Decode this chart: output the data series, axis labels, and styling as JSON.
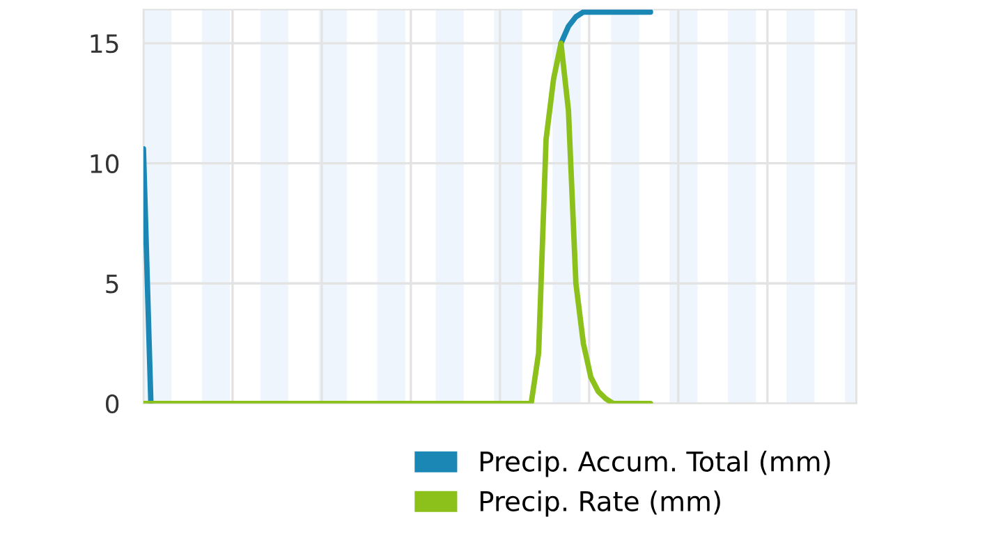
{
  "chart_data": {
    "type": "line",
    "categories": [
      null,
      null,
      null,
      null,
      null,
      null,
      null,
      null,
      null,
      null,
      null,
      null,
      null,
      null,
      null,
      null,
      null,
      null,
      null,
      null,
      null,
      null,
      null,
      null,
      null,
      null,
      null,
      null,
      null,
      null,
      null,
      null,
      null,
      null,
      null,
      null,
      null,
      null,
      null,
      null,
      null,
      null,
      null,
      null,
      null,
      null,
      null,
      null,
      null,
      null,
      null,
      null,
      null,
      null,
      null,
      null,
      null,
      null,
      null,
      null,
      null,
      null,
      null,
      null,
      null,
      null,
      null,
      null,
      null
    ],
    "series": [
      {
        "name": "Precip. Accum. Total (mm)",
        "color": "#1a87b5",
        "values": [
          10.6,
          0,
          null,
          null,
          null,
          null,
          null,
          null,
          null,
          null,
          null,
          null,
          null,
          null,
          null,
          null,
          null,
          null,
          null,
          null,
          null,
          null,
          null,
          null,
          null,
          null,
          null,
          null,
          null,
          null,
          null,
          null,
          null,
          null,
          null,
          null,
          null,
          null,
          null,
          null,
          null,
          null,
          null,
          null,
          null,
          null,
          null,
          null,
          null,
          null,
          null,
          null,
          null,
          null,
          null,
          null,
          15,
          15.7,
          16.1,
          16.3,
          16.3,
          16.3,
          16.3,
          16.3,
          16.3,
          16.3,
          16.3,
          16.3,
          16.3
        ]
      },
      {
        "name": "Precip. Rate (mm)",
        "color": "#8cc01a",
        "values": [
          0,
          0,
          0,
          0,
          0,
          0,
          0,
          0,
          0,
          0,
          0,
          0,
          0,
          0,
          0,
          0,
          0,
          0,
          0,
          0,
          0,
          0,
          0,
          0,
          0,
          0,
          0,
          0,
          0,
          0,
          0,
          0,
          0,
          0,
          0,
          0,
          0,
          0,
          0,
          0,
          0,
          0,
          0,
          0,
          0,
          0,
          0,
          0,
          0,
          0,
          0,
          0,
          0,
          2.1,
          11,
          13.5,
          15,
          12.2,
          5,
          2.5,
          1.1,
          0.5,
          0.2,
          0,
          0,
          0,
          0,
          0,
          0
        ]
      }
    ],
    "ylim": [
      0,
      16.4
    ],
    "yticks": [
      0,
      5,
      10,
      15
    ],
    "grid": true,
    "legend": "bottom right",
    "marker": "none",
    "line_style": "solid",
    "tick_labels": "y"
  }
}
